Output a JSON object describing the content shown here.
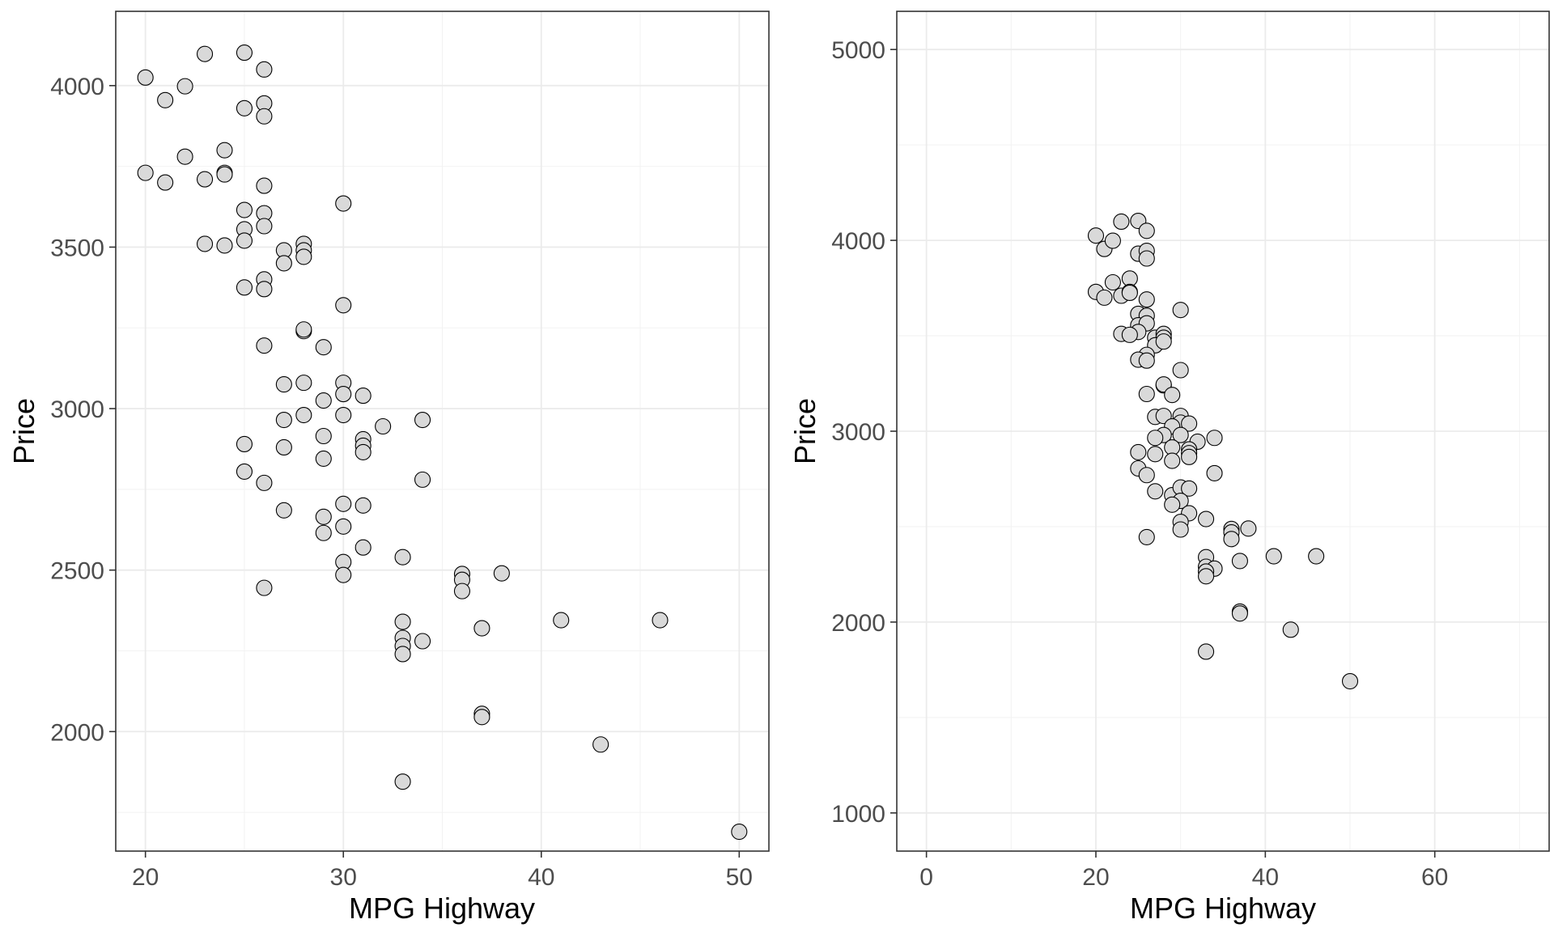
{
  "chart_data": [
    {
      "type": "scatter",
      "xlabel": "MPG Highway",
      "ylabel": "Price",
      "xlim": [
        18.5,
        51.5
      ],
      "ylim": [
        1630,
        4230
      ],
      "x_ticks": [
        20,
        30,
        40,
        50
      ],
      "y_ticks": [
        2000,
        2500,
        3000,
        3500,
        4000
      ],
      "grid": true,
      "legend": "none",
      "point_fill": "#d9d9d9",
      "point_stroke": "#000000",
      "points": [
        [
          20,
          4025
        ],
        [
          21,
          3955
        ],
        [
          22,
          3998
        ],
        [
          23,
          4098
        ],
        [
          25,
          4102
        ],
        [
          26,
          4050
        ],
        [
          25,
          3930
        ],
        [
          26,
          3945
        ],
        [
          26,
          3905
        ],
        [
          20,
          3730
        ],
        [
          21,
          3700
        ],
        [
          22,
          3780
        ],
        [
          23,
          3710
        ],
        [
          24,
          3800
        ],
        [
          24,
          3730
        ],
        [
          24,
          3725
        ],
        [
          26,
          3690
        ],
        [
          25,
          3615
        ],
        [
          26,
          3605
        ],
        [
          25,
          3555
        ],
        [
          26,
          3565
        ],
        [
          30,
          3635
        ],
        [
          25,
          3520
        ],
        [
          23,
          3510
        ],
        [
          24,
          3505
        ],
        [
          27,
          3490
        ],
        [
          28,
          3510
        ],
        [
          28,
          3490
        ],
        [
          27,
          3450
        ],
        [
          28,
          3470
        ],
        [
          26,
          3400
        ],
        [
          25,
          3375
        ],
        [
          26,
          3370
        ],
        [
          30,
          3320
        ],
        [
          28,
          3240
        ],
        [
          28,
          3245
        ],
        [
          26,
          3195
        ],
        [
          29,
          3190
        ],
        [
          27,
          3075
        ],
        [
          28,
          3080
        ],
        [
          30,
          3080
        ],
        [
          30,
          3045
        ],
        [
          31,
          3040
        ],
        [
          29,
          3025
        ],
        [
          28,
          2980
        ],
        [
          30,
          2980
        ],
        [
          27,
          2965
        ],
        [
          32,
          2945
        ],
        [
          34,
          2965
        ],
        [
          29,
          2915
        ],
        [
          31,
          2905
        ],
        [
          31,
          2885
        ],
        [
          31,
          2865
        ],
        [
          25,
          2890
        ],
        [
          27,
          2880
        ],
        [
          29,
          2845
        ],
        [
          25,
          2805
        ],
        [
          26,
          2770
        ],
        [
          34,
          2780
        ],
        [
          27,
          2685
        ],
        [
          29,
          2665
        ],
        [
          30,
          2705
        ],
        [
          31,
          2700
        ],
        [
          30,
          2635
        ],
        [
          29,
          2615
        ],
        [
          31,
          2570
        ],
        [
          30,
          2525
        ],
        [
          30,
          2485
        ],
        [
          33,
          2540
        ],
        [
          36,
          2488
        ],
        [
          36,
          2470
        ],
        [
          38,
          2490
        ],
        [
          36,
          2435
        ],
        [
          26,
          2445
        ],
        [
          33,
          2340
        ],
        [
          41,
          2345
        ],
        [
          46,
          2345
        ],
        [
          37,
          2320
        ],
        [
          33,
          2290
        ],
        [
          34,
          2280
        ],
        [
          33,
          2265
        ],
        [
          33,
          2240
        ],
        [
          37,
          2055
        ],
        [
          37,
          2045
        ],
        [
          43,
          1960
        ],
        [
          33,
          1845
        ],
        [
          50,
          1690
        ]
      ]
    },
    {
      "type": "scatter",
      "xlabel": "MPG Highway",
      "ylabel": "Price",
      "xlim": [
        -3.5,
        73.5
      ],
      "ylim": [
        800,
        5200
      ],
      "x_ticks": [
        0,
        20,
        40,
        60
      ],
      "y_ticks": [
        1000,
        2000,
        3000,
        4000,
        5000
      ],
      "grid": true,
      "legend": "none",
      "point_fill": "#d9d9d9",
      "point_stroke": "#000000",
      "points": [
        [
          20,
          4025
        ],
        [
          21,
          3955
        ],
        [
          22,
          3998
        ],
        [
          23,
          4098
        ],
        [
          25,
          4102
        ],
        [
          26,
          4050
        ],
        [
          25,
          3930
        ],
        [
          26,
          3945
        ],
        [
          26,
          3905
        ],
        [
          20,
          3730
        ],
        [
          21,
          3700
        ],
        [
          22,
          3780
        ],
        [
          23,
          3710
        ],
        [
          24,
          3800
        ],
        [
          24,
          3730
        ],
        [
          24,
          3725
        ],
        [
          26,
          3690
        ],
        [
          25,
          3615
        ],
        [
          26,
          3605
        ],
        [
          25,
          3555
        ],
        [
          26,
          3565
        ],
        [
          30,
          3635
        ],
        [
          25,
          3520
        ],
        [
          23,
          3510
        ],
        [
          24,
          3505
        ],
        [
          27,
          3490
        ],
        [
          28,
          3510
        ],
        [
          28,
          3490
        ],
        [
          27,
          3450
        ],
        [
          28,
          3470
        ],
        [
          26,
          3400
        ],
        [
          25,
          3375
        ],
        [
          26,
          3370
        ],
        [
          30,
          3320
        ],
        [
          28,
          3240
        ],
        [
          28,
          3245
        ],
        [
          26,
          3195
        ],
        [
          29,
          3190
        ],
        [
          27,
          3075
        ],
        [
          28,
          3080
        ],
        [
          30,
          3080
        ],
        [
          30,
          3045
        ],
        [
          31,
          3040
        ],
        [
          29,
          3025
        ],
        [
          28,
          2980
        ],
        [
          30,
          2980
        ],
        [
          27,
          2965
        ],
        [
          32,
          2945
        ],
        [
          34,
          2965
        ],
        [
          29,
          2915
        ],
        [
          31,
          2905
        ],
        [
          31,
          2885
        ],
        [
          31,
          2865
        ],
        [
          25,
          2890
        ],
        [
          27,
          2880
        ],
        [
          29,
          2845
        ],
        [
          25,
          2805
        ],
        [
          26,
          2770
        ],
        [
          34,
          2780
        ],
        [
          27,
          2685
        ],
        [
          29,
          2665
        ],
        [
          30,
          2705
        ],
        [
          31,
          2700
        ],
        [
          30,
          2635
        ],
        [
          29,
          2615
        ],
        [
          31,
          2570
        ],
        [
          30,
          2525
        ],
        [
          30,
          2485
        ],
        [
          33,
          2540
        ],
        [
          36,
          2488
        ],
        [
          36,
          2470
        ],
        [
          38,
          2490
        ],
        [
          36,
          2435
        ],
        [
          26,
          2445
        ],
        [
          33,
          2340
        ],
        [
          41,
          2345
        ],
        [
          46,
          2345
        ],
        [
          37,
          2320
        ],
        [
          33,
          2290
        ],
        [
          34,
          2280
        ],
        [
          33,
          2265
        ],
        [
          33,
          2240
        ],
        [
          37,
          2055
        ],
        [
          37,
          2045
        ],
        [
          43,
          1960
        ],
        [
          33,
          1845
        ],
        [
          50,
          1690
        ]
      ]
    }
  ]
}
